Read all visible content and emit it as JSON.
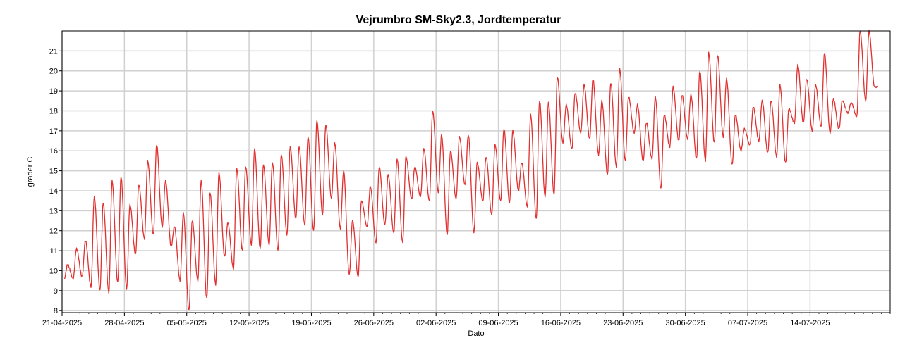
{
  "chart_data": {
    "type": "line",
    "title": "Vejrumbro SM-Sky2.3, Jordtemperatur",
    "xlabel": "Dato",
    "ylabel": "grader C",
    "xlim": [
      "2025-04-21",
      "2025-07-23"
    ],
    "ylim": [
      7.9,
      22
    ],
    "grid": true,
    "x_ticks": [
      "21-04-2025",
      "28-04-2025",
      "05-05-2025",
      "12-05-2025",
      "19-05-2025",
      "26-05-2025",
      "02-06-2025",
      "09-06-2025",
      "16-06-2025",
      "23-06-2025",
      "30-06-2025",
      "07-07-2025",
      "14-07-2025"
    ],
    "y_ticks": [
      8,
      9,
      10,
      11,
      12,
      13,
      14,
      15,
      16,
      17,
      18,
      19,
      20,
      21
    ],
    "series": [
      {
        "color": "#e03030",
        "daily_min_max": [
          [
            "2025-04-21",
            9.6,
            10.3
          ],
          [
            "2025-04-22",
            9.6,
            11.1
          ],
          [
            "2025-04-23",
            9.7,
            11.5
          ],
          [
            "2025-04-24",
            9.2,
            13.7
          ],
          [
            "2025-04-25",
            9.0,
            13.4
          ],
          [
            "2025-04-26",
            8.9,
            14.5
          ],
          [
            "2025-04-27",
            9.4,
            14.7
          ],
          [
            "2025-04-28",
            9.1,
            13.3
          ],
          [
            "2025-04-29",
            10.8,
            14.3
          ],
          [
            "2025-04-30",
            11.6,
            15.5
          ],
          [
            "2025-05-01",
            11.8,
            16.3
          ],
          [
            "2025-05-02",
            12.2,
            14.5
          ],
          [
            "2025-05-03",
            11.2,
            12.2
          ],
          [
            "2025-05-04",
            9.5,
            12.9
          ],
          [
            "2025-05-05",
            8.0,
            12.5
          ],
          [
            "2025-05-06",
            9.5,
            14.5
          ],
          [
            "2025-05-07",
            8.6,
            13.9
          ],
          [
            "2025-05-08",
            9.3,
            14.9
          ],
          [
            "2025-05-09",
            10.7,
            12.4
          ],
          [
            "2025-05-10",
            10.1,
            15.1
          ],
          [
            "2025-05-11",
            11.0,
            15.2
          ],
          [
            "2025-05-12",
            11.3,
            16.1
          ],
          [
            "2025-05-13",
            11.1,
            15.3
          ],
          [
            "2025-05-14",
            11.3,
            15.4
          ],
          [
            "2025-05-15",
            11.0,
            15.8
          ],
          [
            "2025-05-16",
            11.8,
            16.2
          ],
          [
            "2025-05-17",
            12.6,
            16.2
          ],
          [
            "2025-05-18",
            12.3,
            16.7
          ],
          [
            "2025-05-19",
            12.0,
            17.5
          ],
          [
            "2025-05-20",
            12.8,
            17.3
          ],
          [
            "2025-05-21",
            13.6,
            16.4
          ],
          [
            "2025-05-22",
            12.1,
            15.0
          ],
          [
            "2025-05-23",
            9.8,
            12.5
          ],
          [
            "2025-05-24",
            9.7,
            13.5
          ],
          [
            "2025-05-25",
            12.2,
            14.2
          ],
          [
            "2025-05-26",
            11.4,
            15.2
          ],
          [
            "2025-05-27",
            12.3,
            14.8
          ],
          [
            "2025-05-28",
            11.9,
            15.6
          ],
          [
            "2025-05-29",
            11.4,
            15.7
          ],
          [
            "2025-05-30",
            13.6,
            15.2
          ],
          [
            "2025-05-31",
            13.7,
            16.1
          ],
          [
            "2025-06-01",
            13.5,
            18.0
          ],
          [
            "2025-06-02",
            13.9,
            16.8
          ],
          [
            "2025-06-03",
            11.8,
            16.0
          ],
          [
            "2025-06-04",
            13.6,
            16.7
          ],
          [
            "2025-06-05",
            14.3,
            16.8
          ],
          [
            "2025-06-06",
            11.9,
            15.4
          ],
          [
            "2025-06-07",
            13.5,
            15.7
          ],
          [
            "2025-06-08",
            12.8,
            16.3
          ],
          [
            "2025-06-09",
            13.5,
            17.1
          ],
          [
            "2025-06-10",
            13.4,
            17.0
          ],
          [
            "2025-06-11",
            14.0,
            15.4
          ],
          [
            "2025-06-12",
            13.2,
            17.8
          ],
          [
            "2025-06-13",
            12.6,
            18.5
          ],
          [
            "2025-06-14",
            13.7,
            18.4
          ],
          [
            "2025-06-15",
            13.8,
            19.7
          ],
          [
            "2025-06-16",
            16.4,
            18.3
          ],
          [
            "2025-06-17",
            16.1,
            18.9
          ],
          [
            "2025-06-18",
            16.9,
            19.3
          ],
          [
            "2025-06-19",
            16.6,
            19.6
          ],
          [
            "2025-06-20",
            15.8,
            18.5
          ],
          [
            "2025-06-21",
            14.8,
            19.4
          ],
          [
            "2025-06-22",
            15.2,
            20.1
          ],
          [
            "2025-06-23",
            15.5,
            18.7
          ],
          [
            "2025-06-24",
            16.9,
            18.3
          ],
          [
            "2025-06-25",
            15.5,
            17.4
          ],
          [
            "2025-06-26",
            15.6,
            18.7
          ],
          [
            "2025-06-27",
            14.1,
            17.8
          ],
          [
            "2025-06-28",
            16.2,
            19.2
          ],
          [
            "2025-06-29",
            16.5,
            18.8
          ],
          [
            "2025-06-30",
            16.6,
            18.8
          ],
          [
            "2025-07-01",
            15.6,
            20.0
          ],
          [
            "2025-07-02",
            15.5,
            20.9
          ],
          [
            "2025-07-03",
            16.4,
            20.8
          ],
          [
            "2025-07-04",
            16.7,
            19.6
          ],
          [
            "2025-07-05",
            15.3,
            17.8
          ],
          [
            "2025-07-06",
            16.0,
            17.1
          ],
          [
            "2025-07-07",
            16.3,
            18.2
          ],
          [
            "2025-07-08",
            16.5,
            18.5
          ],
          [
            "2025-07-09",
            15.9,
            18.5
          ],
          [
            "2025-07-10",
            15.7,
            19.3
          ],
          [
            "2025-07-11",
            15.4,
            18.1
          ],
          [
            "2025-07-12",
            17.4,
            20.3
          ],
          [
            "2025-07-13",
            17.4,
            19.6
          ],
          [
            "2025-07-14",
            17.0,
            19.3
          ],
          [
            "2025-07-15",
            17.2,
            20.9
          ],
          [
            "2025-07-16",
            16.9,
            18.6
          ],
          [
            "2025-07-17",
            17.1,
            18.5
          ],
          [
            "2025-07-18",
            17.9,
            18.4
          ],
          [
            "2025-07-19",
            17.7,
            22.0
          ],
          [
            "2025-07-20",
            18.5,
            22.0
          ],
          [
            "2025-07-21",
            19.2,
            19.2
          ]
        ]
      }
    ]
  }
}
